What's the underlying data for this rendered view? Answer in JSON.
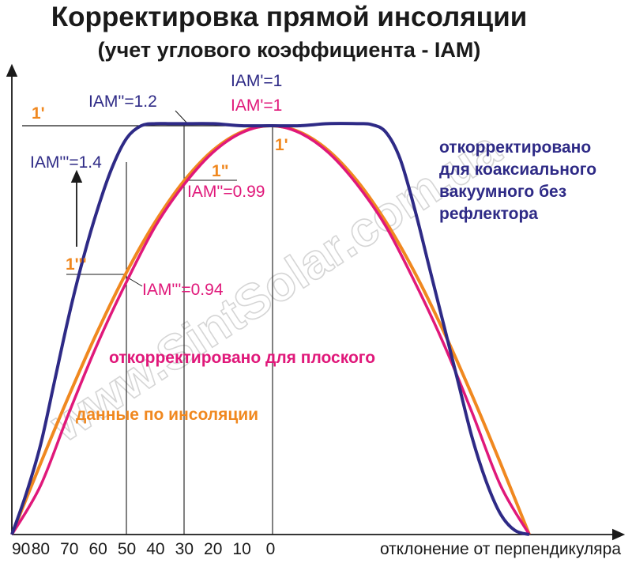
{
  "chart_data": {
    "type": "line",
    "title": "Корректировка прямой инсоляции",
    "subtitle": "(учет углового коэффициента - IAM)",
    "xlabel": "отклонение от перпендикуляра",
    "x_ticks": [
      "90",
      "80",
      "70",
      "60",
      "50",
      "40",
      "30",
      "20",
      "10",
      "0"
    ],
    "xlim": [
      -90,
      90
    ],
    "ylim": [
      0,
      1.1
    ],
    "grid": false,
    "watermark": "www.SintSolar.com.ua",
    "colors": {
      "orange": "#f0881f",
      "magenta": "#e0187a",
      "navy": "#2e2a86",
      "text": "#1a1a1a"
    },
    "series": [
      {
        "name": "данные по инсоляции",
        "color": "#f0881f",
        "x": [
          -90,
          -80,
          -70,
          -60,
          -50,
          -40,
          -30,
          -20,
          -10,
          0,
          10,
          20,
          30,
          40,
          50,
          60,
          70,
          80,
          90
        ],
        "y": [
          0.0,
          0.174,
          0.342,
          0.5,
          0.643,
          0.766,
          0.866,
          0.94,
          0.985,
          1.0,
          0.985,
          0.94,
          0.866,
          0.766,
          0.643,
          0.5,
          0.342,
          0.174,
          0.0
        ]
      },
      {
        "name": "откорректировано для плоского",
        "color": "#e0187a",
        "x": [
          -90,
          -80,
          -70,
          -60,
          -50,
          -40,
          -30,
          -20,
          -10,
          0,
          10,
          20,
          30,
          40,
          50,
          60,
          70,
          80,
          90
        ],
        "y": [
          0.0,
          0.12,
          0.3,
          0.47,
          0.62,
          0.755,
          0.857,
          0.935,
          0.983,
          1.0,
          0.983,
          0.935,
          0.857,
          0.755,
          0.62,
          0.47,
          0.3,
          0.12,
          0.0
        ]
      },
      {
        "name": "откорректировано для коаксиального вакуумного без рефлектора",
        "color": "#2e2a86",
        "x": [
          -90,
          -85,
          -80,
          -75,
          -70,
          -65,
          -60,
          -55,
          -50,
          -45,
          -40,
          -35,
          -30,
          -20,
          -10,
          0,
          10,
          20,
          30,
          35,
          40,
          45,
          50,
          55,
          60,
          65,
          70,
          75,
          80,
          85,
          90
        ],
        "y": [
          0.0,
          0.1,
          0.22,
          0.38,
          0.54,
          0.68,
          0.8,
          0.9,
          0.97,
          1.0,
          1.005,
          1.005,
          1.005,
          1.005,
          1.0,
          1.0,
          1.0,
          1.005,
          1.005,
          1.003,
          0.985,
          0.92,
          0.8,
          0.66,
          0.52,
          0.38,
          0.24,
          0.13,
          0.05,
          0.01,
          0.0
        ]
      }
    ],
    "annotations": {
      "one_prime_left": "1'",
      "one_prime_right": "1'",
      "one_double": "1\"",
      "one_triple": "1'''",
      "iam_navy_top": "IAM'=1",
      "iam_magenta_top": "IAM'=1",
      "iam_12": "IAM''=1.2",
      "iam_14": "IAM'''=1.4",
      "iam_099": "IAM''=0.99",
      "iam_094": "IAM'''=0.94"
    },
    "legend": {
      "navy_lines": [
        "откорректировано",
        "для коаксиального",
        "вакуумного без",
        "рефлектора"
      ],
      "magenta": "откорректировано для плоского",
      "orange": "данные по инсоляции"
    }
  }
}
